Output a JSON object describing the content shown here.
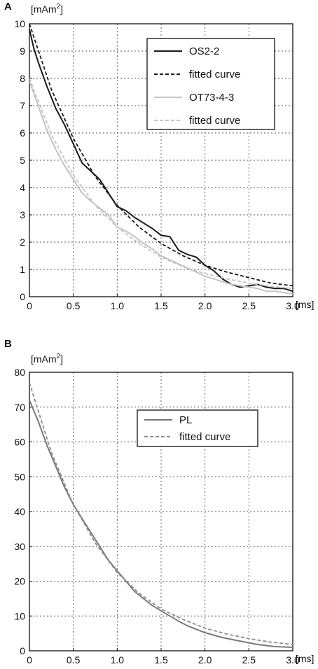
{
  "chart_data": [
    {
      "panel": "A",
      "type": "line",
      "ylabel_unit": "[mAm",
      "ylabel_sup": "2",
      "ylabel_close": "]",
      "xlabel_unit": "[ms]",
      "xlim": [
        0,
        3.0
      ],
      "ylim": [
        0,
        10
      ],
      "xticks": [
        0,
        0.5,
        1.0,
        1.5,
        2.0,
        2.5,
        3.0
      ],
      "xtick_labels": [
        "0",
        "0.5",
        "1.0",
        "1.5",
        "2.0",
        "2.5",
        "3.0"
      ],
      "yticks": [
        0,
        1,
        2,
        3,
        4,
        5,
        6,
        7,
        8,
        9,
        10
      ],
      "ytick_labels": [
        "0",
        "1",
        "2",
        "3",
        "4",
        "5",
        "6",
        "7",
        "8",
        "9",
        "10"
      ],
      "grid": true,
      "legend_position": "top-right",
      "series": [
        {
          "name": "OS2-2",
          "color": "#1a1a1a",
          "style": "solid",
          "x": [
            0,
            0.05,
            0.1,
            0.2,
            0.3,
            0.4,
            0.5,
            0.6,
            0.7,
            0.8,
            0.9,
            1.0,
            1.1,
            1.2,
            1.3,
            1.4,
            1.5,
            1.6,
            1.7,
            1.8,
            1.9,
            2.0,
            2.1,
            2.2,
            2.3,
            2.4,
            2.5,
            2.6,
            2.7,
            2.8,
            2.9,
            3.0
          ],
          "y": [
            9.8,
            9.1,
            8.6,
            7.7,
            6.9,
            6.3,
            5.6,
            4.9,
            4.6,
            4.3,
            3.8,
            3.3,
            3.15,
            2.9,
            2.7,
            2.5,
            2.25,
            2.2,
            1.7,
            1.55,
            1.45,
            1.15,
            0.95,
            0.65,
            0.45,
            0.35,
            0.4,
            0.45,
            0.35,
            0.3,
            0.3,
            0.2
          ]
        },
        {
          "name": "fitted curve",
          "color": "#1a1a1a",
          "style": "dashed",
          "x": [
            0,
            0.25,
            0.5,
            0.75,
            1.0,
            1.25,
            1.5,
            1.75,
            2.0,
            2.25,
            2.5,
            2.75,
            3.0
          ],
          "y": [
            10.0,
            7.6,
            5.8,
            4.4,
            3.35,
            2.55,
            1.95,
            1.5,
            1.15,
            0.9,
            0.7,
            0.5,
            0.4
          ]
        },
        {
          "name": "OT73-4-3",
          "color": "#c4c4c4",
          "style": "solid",
          "x": [
            0,
            0.1,
            0.2,
            0.3,
            0.4,
            0.5,
            0.6,
            0.7,
            0.8,
            0.9,
            1.0,
            1.1,
            1.2,
            1.3,
            1.4,
            1.5,
            1.6,
            1.7,
            1.8,
            1.9,
            2.0,
            2.1,
            2.2,
            2.3,
            2.4,
            2.5,
            2.6,
            2.7,
            2.8,
            2.9,
            3.0
          ],
          "y": [
            7.9,
            7.0,
            6.1,
            5.4,
            4.8,
            4.3,
            3.8,
            3.5,
            3.25,
            3.0,
            2.55,
            2.4,
            2.2,
            1.95,
            1.75,
            1.5,
            1.35,
            1.2,
            1.05,
            0.9,
            0.75,
            0.65,
            0.55,
            0.45,
            0.4,
            0.35,
            0.3,
            0.2,
            0.2,
            0.15,
            0.1
          ]
        },
        {
          "name": "fitted curve",
          "color": "#c4c4c4",
          "style": "dashed",
          "x": [
            0,
            0.25,
            0.5,
            0.75,
            1.0,
            1.25,
            1.5,
            1.75,
            2.0,
            2.25,
            2.5,
            2.75,
            3.0
          ],
          "y": [
            8.0,
            5.95,
            4.45,
            3.35,
            2.55,
            1.95,
            1.45,
            1.1,
            0.85,
            0.65,
            0.5,
            0.38,
            0.3
          ]
        }
      ]
    },
    {
      "panel": "B",
      "type": "line",
      "ylabel_unit": "[mAm",
      "ylabel_sup": "2",
      "ylabel_close": "]",
      "xlabel_unit": "[ms]",
      "xlim": [
        0,
        3.0
      ],
      "ylim": [
        0,
        80
      ],
      "xticks": [
        0,
        0.5,
        1.0,
        1.5,
        2.0,
        2.5,
        3.0
      ],
      "xtick_labels": [
        "0",
        "0.5",
        "1.0",
        "1.5",
        "2.0",
        "2.5",
        "3.0"
      ],
      "yticks": [
        0,
        10,
        20,
        30,
        40,
        50,
        60,
        70,
        80
      ],
      "ytick_labels": [
        "0",
        "10",
        "20",
        "30",
        "40",
        "50",
        "60",
        "70",
        "80"
      ],
      "grid": true,
      "legend_position": "center-right",
      "series": [
        {
          "name": "PL",
          "color": "#7a7a7a",
          "style": "solid",
          "x": [
            0,
            0.1,
            0.2,
            0.3,
            0.4,
            0.5,
            0.6,
            0.7,
            0.8,
            0.9,
            1.0,
            1.1,
            1.2,
            1.3,
            1.4,
            1.5,
            1.6,
            1.7,
            1.8,
            1.9,
            2.0,
            2.2,
            2.4,
            2.6,
            2.8,
            3.0
          ],
          "y": [
            72,
            66,
            59,
            53,
            47,
            42,
            38,
            34,
            30,
            26,
            23,
            20,
            17,
            15,
            13,
            11.5,
            10,
            8.5,
            7.2,
            6.2,
            5.2,
            3.8,
            2.8,
            1.8,
            1.2,
            1.0
          ]
        },
        {
          "name": "fitted curve",
          "color": "#8c8c8c",
          "style": "dashed",
          "x": [
            0,
            0.25,
            0.5,
            0.75,
            1.0,
            1.25,
            1.5,
            1.75,
            2.0,
            2.25,
            2.5,
            2.75,
            3.0
          ],
          "y": [
            77,
            57,
            42,
            31,
            22.5,
            16.5,
            12,
            9,
            6.5,
            4.8,
            3.5,
            2.5,
            1.8
          ]
        }
      ]
    }
  ]
}
